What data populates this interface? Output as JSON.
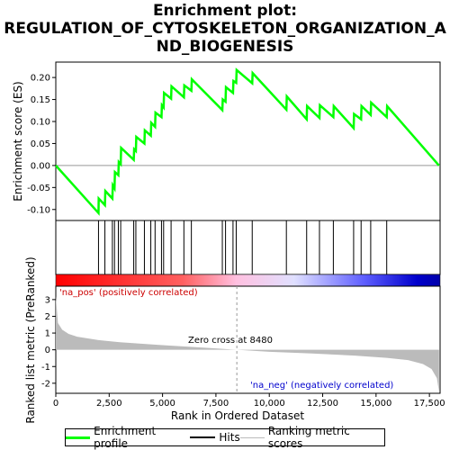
{
  "title_line1": "Enrichment plot:",
  "title_line2": "REGULATION_OF_CYTOSKELETON_ORGANIZATION_A",
  "title_line3": "ND_BIOGENESIS",
  "chart_data": {
    "type": "line",
    "title": "Enrichment plot: REGULATION_OF_CYTOSKELETON_ORGANIZATION_AND_BIOGENESIS",
    "x_range": [
      0,
      18000
    ],
    "x_ticks": [
      0,
      2500,
      5000,
      7500,
      10000,
      12500,
      15000,
      17500
    ],
    "x_tick_labels": [
      "0",
      "2,500",
      "5,000",
      "7,500",
      "10,000",
      "12,500",
      "15,000",
      "17,500"
    ],
    "xlabel": "Rank in Ordered Dataset",
    "es_panel": {
      "ylabel": "Enrichment score (ES)",
      "ylim": [
        -0.125,
        0.235
      ],
      "y_ticks": [
        -0.1,
        -0.05,
        0.0,
        0.05,
        0.1,
        0.15,
        0.2
      ],
      "y_tick_labels": [
        "-0.10",
        "-0.05",
        "0.00",
        "0.05",
        "0.10",
        "0.15",
        "0.20"
      ],
      "series": [
        {
          "name": "Enrichment profile",
          "color": "#00ff00",
          "points": [
            [
              0,
              0.0
            ],
            [
              2000,
              -0.108
            ],
            [
              2010,
              -0.075
            ],
            [
              2300,
              -0.09
            ],
            [
              2320,
              -0.058
            ],
            [
              2650,
              -0.075
            ],
            [
              2670,
              -0.045
            ],
            [
              2750,
              -0.052
            ],
            [
              2770,
              -0.015
            ],
            [
              2930,
              -0.022
            ],
            [
              2950,
              0.008
            ],
            [
              3040,
              0.003
            ],
            [
              3060,
              0.04
            ],
            [
              3650,
              0.013
            ],
            [
              3670,
              0.037
            ],
            [
              3750,
              0.033
            ],
            [
              3770,
              0.065
            ],
            [
              4150,
              0.05
            ],
            [
              4170,
              0.08
            ],
            [
              4450,
              0.068
            ],
            [
              4470,
              0.097
            ],
            [
              4650,
              0.088
            ],
            [
              4670,
              0.12
            ],
            [
              4950,
              0.11
            ],
            [
              4970,
              0.137
            ],
            [
              5050,
              0.132
            ],
            [
              5070,
              0.165
            ],
            [
              5400,
              0.152
            ],
            [
              5420,
              0.18
            ],
            [
              6000,
              0.155
            ],
            [
              6020,
              0.182
            ],
            [
              6350,
              0.17
            ],
            [
              6370,
              0.196
            ],
            [
              7800,
              0.126
            ],
            [
              7820,
              0.15
            ],
            [
              7950,
              0.145
            ],
            [
              7970,
              0.178
            ],
            [
              8300,
              0.165
            ],
            [
              8320,
              0.192
            ],
            [
              8450,
              0.188
            ],
            [
              8470,
              0.217
            ],
            [
              9200,
              0.187
            ],
            [
              9220,
              0.21
            ],
            [
              10800,
              0.127
            ],
            [
              10820,
              0.157
            ],
            [
              11750,
              0.105
            ],
            [
              11770,
              0.135
            ],
            [
              12350,
              0.108
            ],
            [
              12370,
              0.137
            ],
            [
              13000,
              0.11
            ],
            [
              13020,
              0.135
            ],
            [
              13950,
              0.085
            ],
            [
              13970,
              0.117
            ],
            [
              14300,
              0.105
            ],
            [
              14320,
              0.135
            ],
            [
              14750,
              0.115
            ],
            [
              14770,
              0.143
            ],
            [
              15500,
              0.11
            ],
            [
              15520,
              0.135
            ],
            [
              17950,
              0.0
            ]
          ]
        }
      ]
    },
    "hits_panel": {
      "name": "Hits",
      "color": "#000000",
      "hit_ranks": [
        2000,
        2300,
        2650,
        2750,
        2930,
        3040,
        3650,
        3750,
        4150,
        4450,
        4650,
        4950,
        5050,
        5400,
        6000,
        6350,
        7800,
        7950,
        8300,
        8450,
        9200,
        10800,
        11750,
        12350,
        13000,
        13950,
        14300,
        14750,
        15500
      ]
    },
    "heatmap_bar": {
      "colors_from_high_to_low": [
        "#ff0000",
        "#ffc0e0",
        "#e0e0ff",
        "#0000cc"
      ]
    },
    "metric_panel": {
      "name": "Ranking metric scores",
      "ylabel": "Ranked list metric (PreRanked)",
      "ylim": [
        -2.6,
        3.8
      ],
      "y_ticks": [
        -2,
        -1,
        0,
        1,
        2,
        3
      ],
      "y_tick_labels": [
        "-2",
        "-1",
        "0",
        "1",
        "2",
        "3"
      ],
      "color": "#bbbbbb",
      "profile": [
        [
          0,
          3.2
        ],
        [
          100,
          1.6
        ],
        [
          300,
          1.2
        ],
        [
          600,
          0.95
        ],
        [
          1000,
          0.78
        ],
        [
          2000,
          0.58
        ],
        [
          3000,
          0.45
        ],
        [
          5000,
          0.28
        ],
        [
          7000,
          0.12
        ],
        [
          8480,
          0.0
        ],
        [
          10000,
          -0.12
        ],
        [
          12000,
          -0.22
        ],
        [
          14000,
          -0.35
        ],
        [
          15500,
          -0.48
        ],
        [
          16500,
          -0.62
        ],
        [
          17200,
          -0.85
        ],
        [
          17600,
          -1.15
        ],
        [
          17850,
          -1.7
        ],
        [
          17950,
          -2.5
        ]
      ],
      "zero_cross_label": "Zero cross at 8480",
      "zero_cross": 8480,
      "pos_label": "'na_pos' (positively correlated)",
      "neg_label": "'na_neg' (negatively correlated)"
    },
    "legend": [
      "Enrichment profile",
      "Hits",
      "Ranking metric scores"
    ]
  }
}
